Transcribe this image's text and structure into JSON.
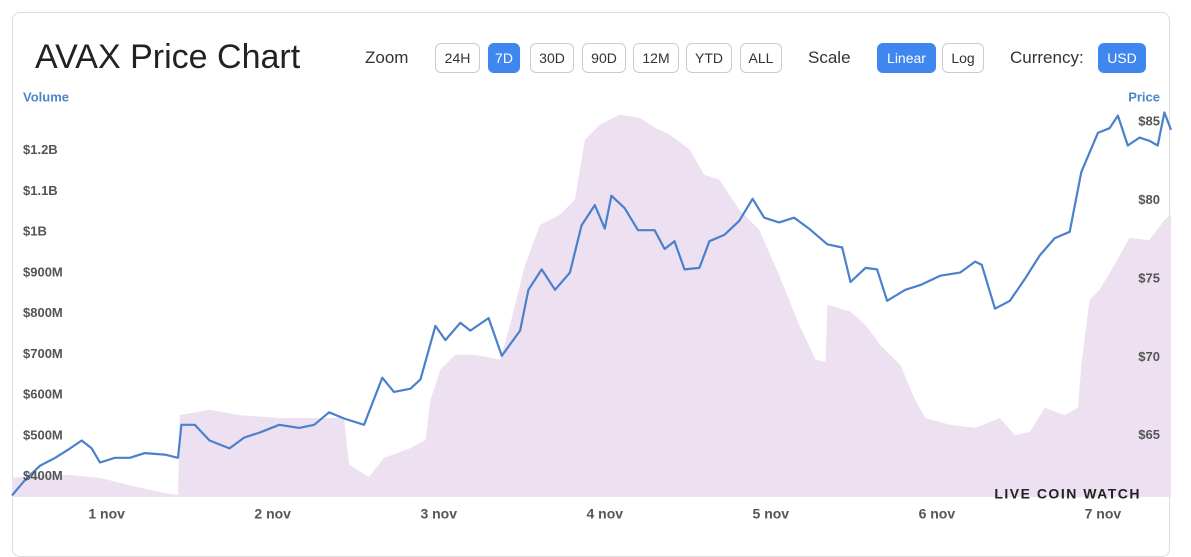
{
  "toolbar": {
    "zoom": {
      "label": "Zoom",
      "options": [
        "24H",
        "7D",
        "30D",
        "90D",
        "12M",
        "YTD",
        "ALL"
      ],
      "selected": "7D"
    },
    "scale": {
      "label": "Scale",
      "options": [
        "Linear",
        "Log"
      ],
      "selected": "Linear"
    },
    "currency": {
      "label": "Currency:",
      "options": [
        "USD"
      ],
      "selected": "USD"
    }
  },
  "chart_data": {
    "type": "combo",
    "title": "AVAX Price Chart",
    "y_label": "Volume",
    "y2_label": "Price",
    "watermark": "LIVE COIN WATCH",
    "xlim": [
      0.43,
      7.41
    ],
    "xticks": [
      {
        "value": 1,
        "label": "1 nov"
      },
      {
        "value": 2,
        "label": "2 nov"
      },
      {
        "value": 3,
        "label": "3 nov"
      },
      {
        "value": 4,
        "label": "4 nov"
      },
      {
        "value": 5,
        "label": "5 nov"
      },
      {
        "value": 6,
        "label": "6 nov"
      },
      {
        "value": 7,
        "label": "7 nov"
      }
    ],
    "ylim": [
      350000000,
      1300000000
    ],
    "yticks": [
      {
        "value": 400000000,
        "label": "$400M"
      },
      {
        "value": 500000000,
        "label": "$500M"
      },
      {
        "value": 600000000,
        "label": "$600M"
      },
      {
        "value": 700000000,
        "label": "$700M"
      },
      {
        "value": 800000000,
        "label": "$800M"
      },
      {
        "value": 900000000,
        "label": "$900M"
      },
      {
        "value": 1000000000,
        "label": "$1B"
      },
      {
        "value": 1100000000,
        "label": "$1.1B"
      },
      {
        "value": 1200000000,
        "label": "$1.2B"
      }
    ],
    "y2lim": [
      61.1,
      85.76
    ],
    "y2ticks": [
      {
        "value": 65,
        "label": "$65"
      },
      {
        "value": 70,
        "label": "$70"
      },
      {
        "value": 75,
        "label": "$75"
      },
      {
        "value": 80,
        "label": "$80"
      },
      {
        "value": 85,
        "label": "$85"
      }
    ],
    "series": [
      {
        "name": "Volume",
        "type": "area",
        "axis": "y",
        "color": "#ede1f1",
        "x": [
          0.43,
          0.6,
          0.78,
          0.96,
          1.14,
          1.32,
          1.43,
          1.44,
          1.62,
          1.8,
          2.04,
          2.28,
          2.43,
          2.46,
          2.58,
          2.67,
          2.83,
          2.92,
          2.95,
          3.01,
          3.1,
          3.22,
          3.37,
          3.43,
          3.52,
          3.61,
          3.73,
          3.82,
          3.88,
          3.97,
          4.09,
          4.21,
          4.3,
          4.39,
          4.51,
          4.6,
          4.69,
          4.81,
          4.93,
          5.05,
          5.17,
          5.27,
          5.33,
          5.34,
          5.48,
          5.57,
          5.66,
          5.78,
          5.87,
          5.93,
          6.08,
          6.23,
          6.38,
          6.47,
          6.56,
          6.65,
          6.77,
          6.85,
          6.87,
          6.92,
          6.98,
          7.07,
          7.16,
          7.28,
          7.37,
          7.41
        ],
        "values": [
          397000000,
          404000000,
          404000000,
          397000000,
          379000000,
          362000000,
          355000000,
          551000000,
          564000000,
          551000000,
          544000000,
          544000000,
          544000000,
          429000000,
          399000000,
          446000000,
          470000000,
          490000000,
          588000000,
          662000000,
          699000000,
          699000000,
          687000000,
          773000000,
          920000000,
          1018000000,
          1043000000,
          1080000000,
          1227000000,
          1264000000,
          1289000000,
          1281000000,
          1257000000,
          1240000000,
          1203000000,
          1141000000,
          1129000000,
          1055000000,
          1006000000,
          895000000,
          773000000,
          687000000,
          682000000,
          822000000,
          805000000,
          773000000,
          723000000,
          674000000,
          588000000,
          544000000,
          527000000,
          520000000,
          544000000,
          502000000,
          510000000,
          569000000,
          551000000,
          569000000,
          674000000,
          834000000,
          859000000,
          920000000,
          986000000,
          981000000,
          1030000000,
          1043000000
        ]
      },
      {
        "name": "Price",
        "type": "line",
        "axis": "y2",
        "color": "#4a80cc",
        "x": [
          0.43,
          0.51,
          0.6,
          0.69,
          0.78,
          0.85,
          0.91,
          0.96,
          1.05,
          1.14,
          1.23,
          1.35,
          1.43,
          1.45,
          1.53,
          1.62,
          1.74,
          1.83,
          1.92,
          2.04,
          2.16,
          2.25,
          2.34,
          2.43,
          2.55,
          2.66,
          2.73,
          2.83,
          2.89,
          2.98,
          3.04,
          3.13,
          3.19,
          3.3,
          3.38,
          3.49,
          3.54,
          3.62,
          3.7,
          3.79,
          3.86,
          3.94,
          4.0,
          4.04,
          4.12,
          4.2,
          4.3,
          4.36,
          4.42,
          4.48,
          4.57,
          4.63,
          4.72,
          4.81,
          4.89,
          4.96,
          5.05,
          5.14,
          5.23,
          5.34,
          5.43,
          5.48,
          5.57,
          5.64,
          5.7,
          5.81,
          5.9,
          6.02,
          6.14,
          6.23,
          6.27,
          6.35,
          6.44,
          6.53,
          6.62,
          6.71,
          6.8,
          6.87,
          6.97,
          7.04,
          7.09,
          7.15,
          7.22,
          7.28,
          7.33,
          7.37,
          7.41
        ],
        "values": [
          61.2,
          62.2,
          63.1,
          63.6,
          64.2,
          64.7,
          64.2,
          63.3,
          63.6,
          63.6,
          63.9,
          63.8,
          63.6,
          65.7,
          65.7,
          64.7,
          64.2,
          64.9,
          65.2,
          65.7,
          65.5,
          65.7,
          66.5,
          66.1,
          65.7,
          68.7,
          67.8,
          68.0,
          68.6,
          72.0,
          71.1,
          72.2,
          71.7,
          72.5,
          70.1,
          71.7,
          74.3,
          75.6,
          74.3,
          75.4,
          78.4,
          79.7,
          78.2,
          80.3,
          79.5,
          78.1,
          78.1,
          76.9,
          77.4,
          75.6,
          75.7,
          77.4,
          77.8,
          78.7,
          80.1,
          78.9,
          78.6,
          78.9,
          78.2,
          77.2,
          77.0,
          74.8,
          75.7,
          75.6,
          73.6,
          74.3,
          74.6,
          75.2,
          75.4,
          76.1,
          75.9,
          73.1,
          73.6,
          75.0,
          76.5,
          77.6,
          78.0,
          81.8,
          84.3,
          84.6,
          85.4,
          83.5,
          84.0,
          83.8,
          83.5,
          85.6,
          84.5
        ]
      }
    ]
  }
}
